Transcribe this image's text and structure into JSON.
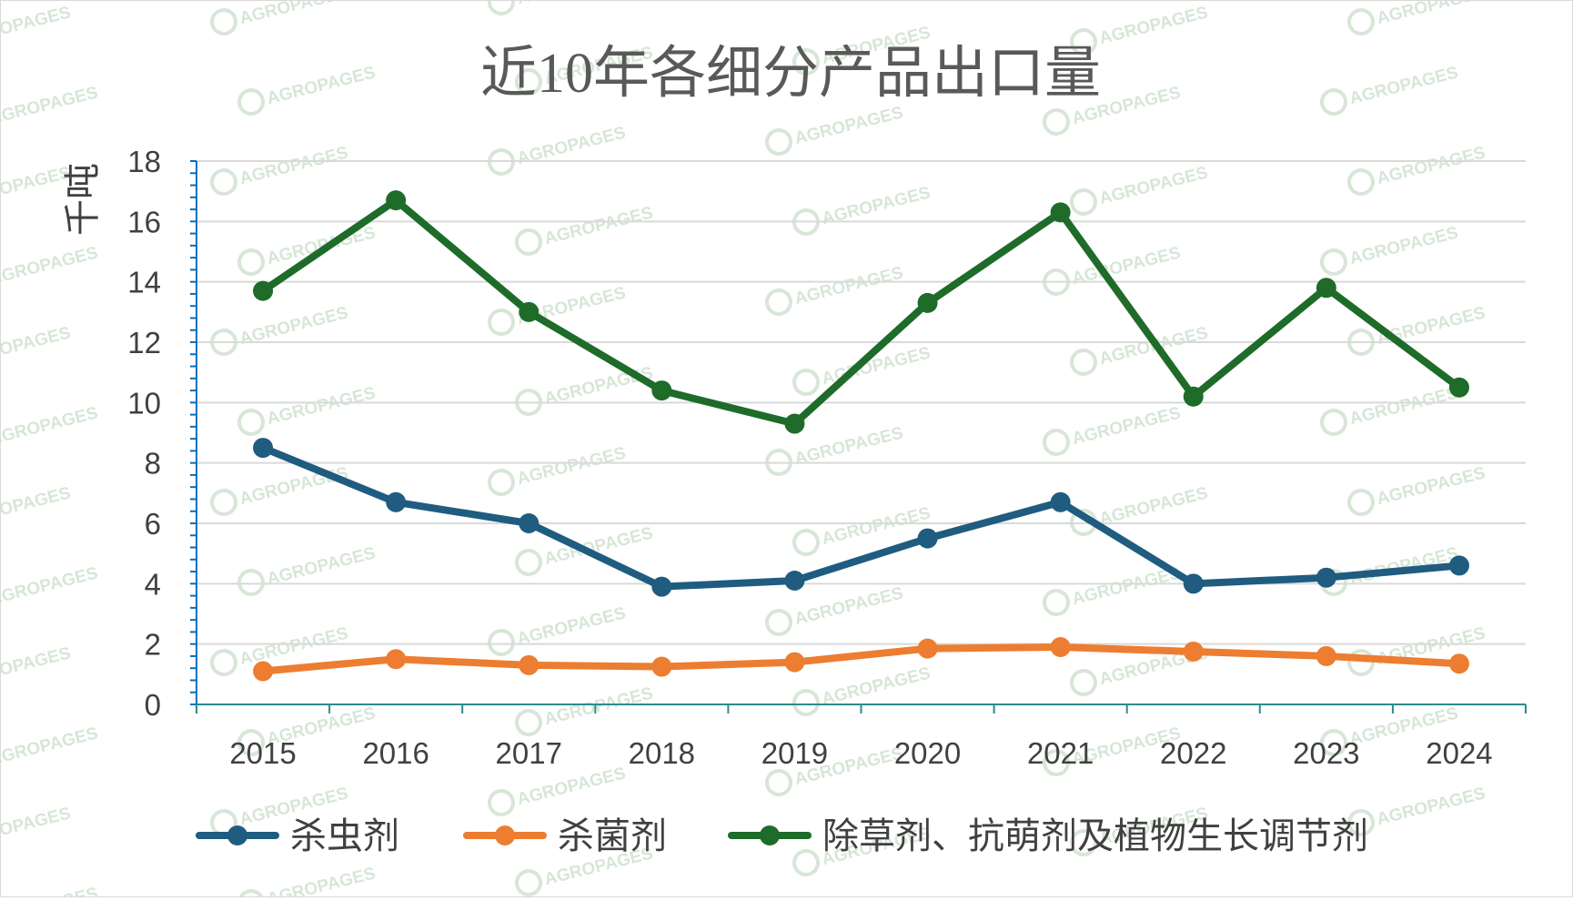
{
  "chart_data": {
    "type": "line",
    "title": "近10年各细分产品出口量",
    "ylabel": "千吨",
    "xlabel": "",
    "categories": [
      "2015",
      "2016",
      "2017",
      "2018",
      "2019",
      "2020",
      "2021",
      "2022",
      "2023",
      "2024"
    ],
    "ylim": [
      0,
      18
    ],
    "yticks": [
      0,
      2,
      4,
      6,
      8,
      10,
      12,
      14,
      16,
      18
    ],
    "grid": true,
    "legend_position": "bottom",
    "series": [
      {
        "name": "杀虫剂",
        "color": "#1f5c80",
        "values": [
          8.5,
          6.7,
          6.0,
          3.9,
          4.1,
          5.5,
          6.7,
          4.0,
          4.2,
          4.6
        ]
      },
      {
        "name": "杀菌剂",
        "color": "#ed7d31",
        "values": [
          1.1,
          1.5,
          1.3,
          1.25,
          1.4,
          1.85,
          1.9,
          1.75,
          1.6,
          1.35
        ]
      },
      {
        "name": "除草剂、抗萌剂及植物生长调节剂",
        "color": "#1e6b2a",
        "values": [
          13.7,
          16.7,
          13.0,
          10.4,
          9.3,
          13.3,
          16.3,
          10.2,
          13.8,
          10.5
        ]
      }
    ]
  },
  "watermark": {
    "text": "AGROPAGES",
    "color": "#8fb88f"
  }
}
